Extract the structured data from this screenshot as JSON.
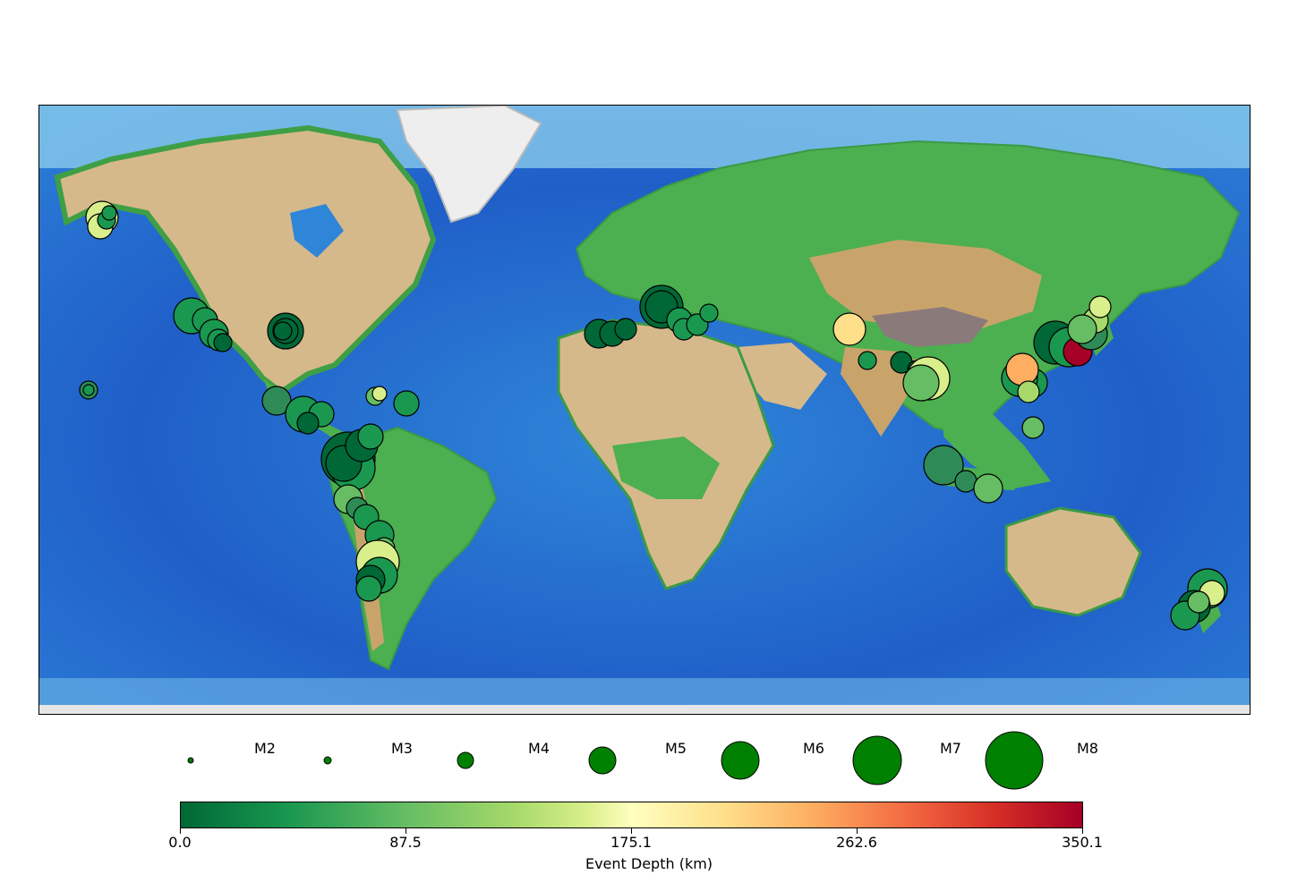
{
  "legend": {
    "magnitudes": [
      "M2",
      "M3",
      "M4",
      "M5",
      "M6",
      "M7",
      "M8"
    ],
    "marker_color": "#008000"
  },
  "colorbar": {
    "title": "Event Depth (km)",
    "ticks": [
      "0.0",
      "87.5",
      "175.1",
      "262.6",
      "350.1"
    ],
    "min": 0.0,
    "max": 350.1,
    "colormap": "RdYlGn_r"
  },
  "colors": {
    "ocean_deep": "#1a4fc4",
    "ocean_mid": "#2f86d9",
    "ocean_shelf": "#8fd0ee",
    "land_low": "#3fa34a",
    "land_mid": "#d9c089",
    "land_high": "#9b7a4a",
    "ice": "#eeeeee"
  },
  "icons": {
    "event_marker": "circle-icon"
  }
}
